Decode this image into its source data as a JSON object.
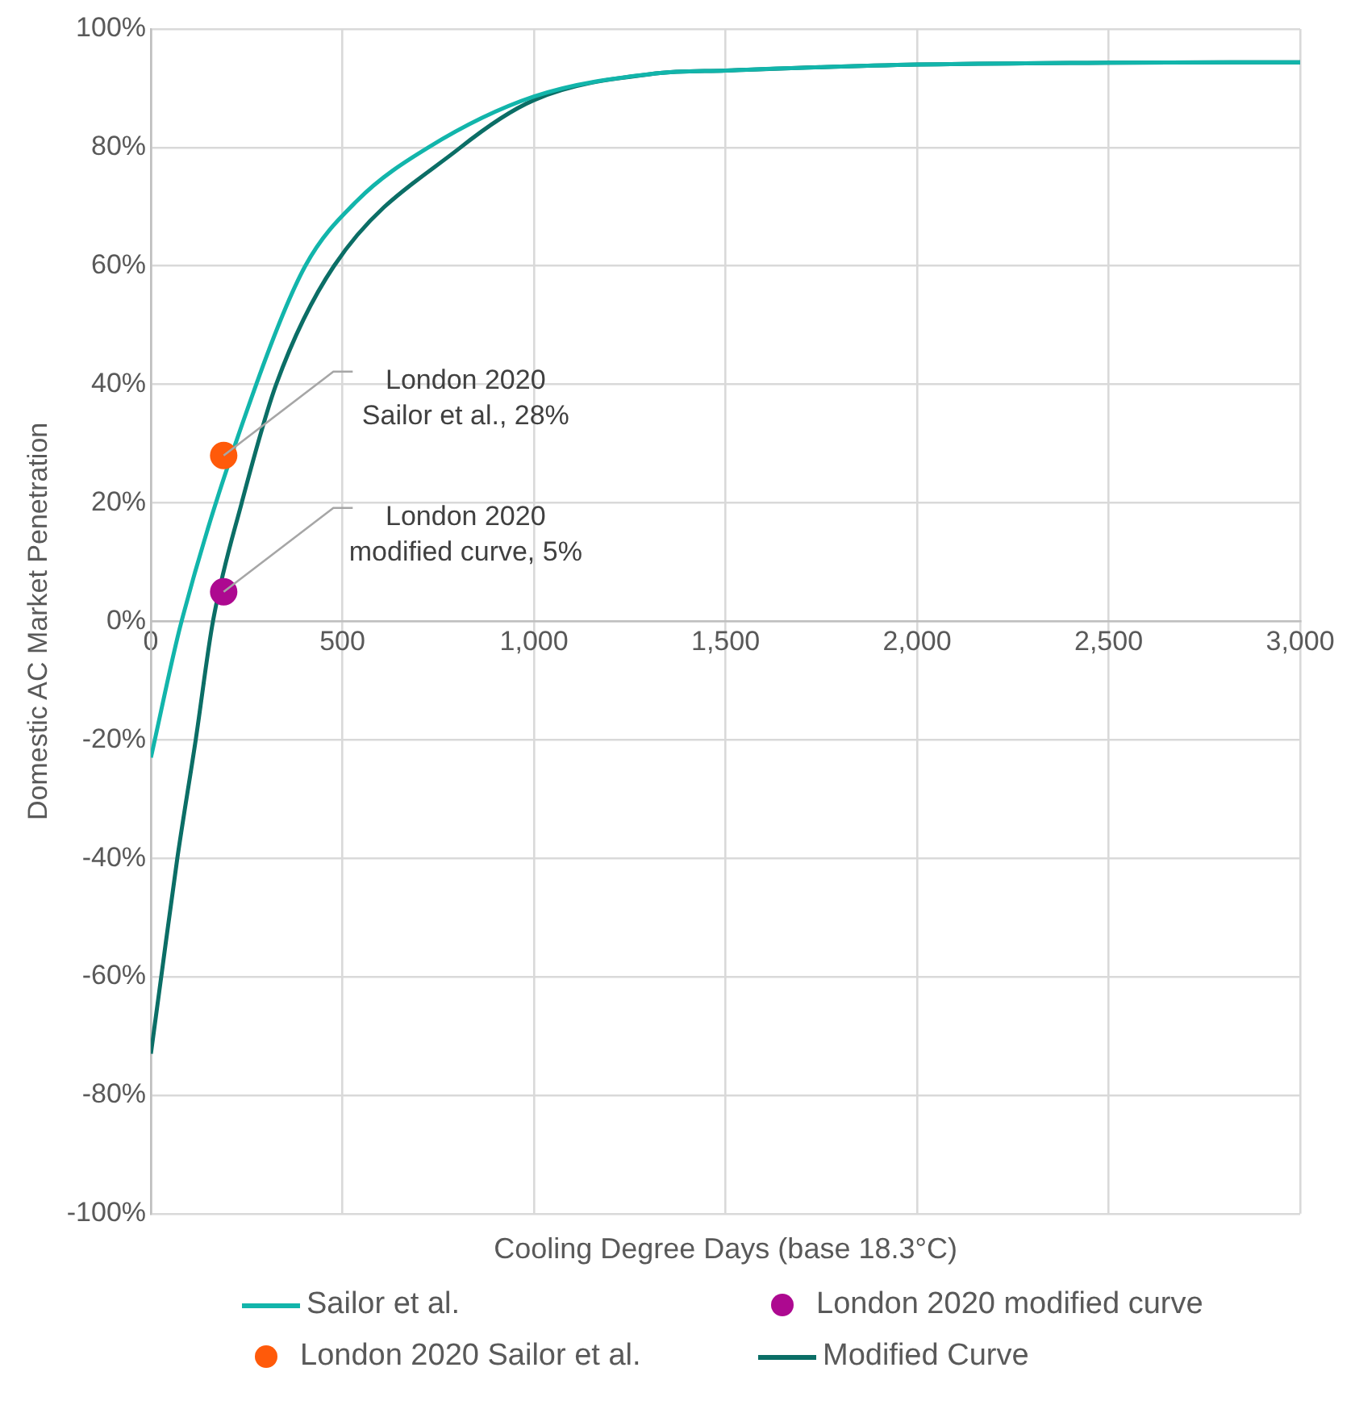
{
  "chart_data": {
    "type": "line",
    "xlabel": "Cooling Degree Days (base 18.3°C)",
    "ylabel": "Domestic AC Market Penetration",
    "xlim": [
      0,
      3000
    ],
    "ylim": [
      -100,
      100
    ],
    "xticks": [
      0,
      500,
      {
        "value": 1000,
        "label": "1,000"
      },
      {
        "value": 1500,
        "label": "1,500"
      },
      {
        "value": 2000,
        "label": "2,000"
      },
      {
        "value": 2500,
        "label": "2,500"
      },
      {
        "value": 3000,
        "label": "3,000"
      }
    ],
    "yticks": [
      {
        "value": -100,
        "label": "-100%"
      },
      {
        "value": -80,
        "label": "-80%"
      },
      {
        "value": -60,
        "label": "-60%"
      },
      {
        "value": -40,
        "label": "-40%"
      },
      {
        "value": -20,
        "label": "-20%"
      },
      {
        "value": 0,
        "label": "0%"
      },
      {
        "value": 20,
        "label": "20%"
      },
      {
        "value": 40,
        "label": "40%"
      },
      {
        "value": 60,
        "label": "60%"
      },
      {
        "value": 80,
        "label": "80%"
      },
      {
        "value": 100,
        "label": "100%"
      }
    ],
    "grid": true,
    "legend": "bottom",
    "line_style": "solid",
    "series": [
      {
        "name": "Sailor et al.",
        "color": "#12b5ab",
        "marker": "none",
        "x": [
          0,
          80,
          275,
          403,
          538,
          724,
          1000,
          1318,
          1500,
          2000,
          2500,
          3000
        ],
        "values": [
          -23,
          0,
          40,
          60,
          71,
          80,
          88.6,
          92.5,
          93,
          94,
          94.3,
          94.4
        ]
      },
      {
        "name": "London 2020 modified curve",
        "type": "scatter",
        "color": "#ad0990",
        "marker": "circle",
        "x": [
          190
        ],
        "values": [
          5
        ]
      },
      {
        "name": "London 2020 Sailor et al.",
        "type": "scatter",
        "color": "#ff5a0a",
        "marker": "circle",
        "x": [
          190
        ],
        "values": [
          28
        ]
      },
      {
        "name": "Modified Curve",
        "color": "#0b6e66",
        "marker": "none",
        "x": [
          0,
          27,
          69,
          117,
          162,
          237,
          327,
          478,
          808,
          1000,
          1318,
          1500,
          2000,
          2500,
          3000
        ],
        "values": [
          -73,
          -60,
          -40,
          -20,
          0,
          20,
          40,
          60,
          80,
          88,
          92.5,
          93,
          94,
          94.3,
          94.4
        ]
      }
    ],
    "annotations": [
      {
        "text": "London 2020\nSailor et al., 28%",
        "x": 190,
        "y": 28
      },
      {
        "text": "London 2020\nmodified curve, 5%",
        "x": 190,
        "y": 5
      }
    ]
  }
}
